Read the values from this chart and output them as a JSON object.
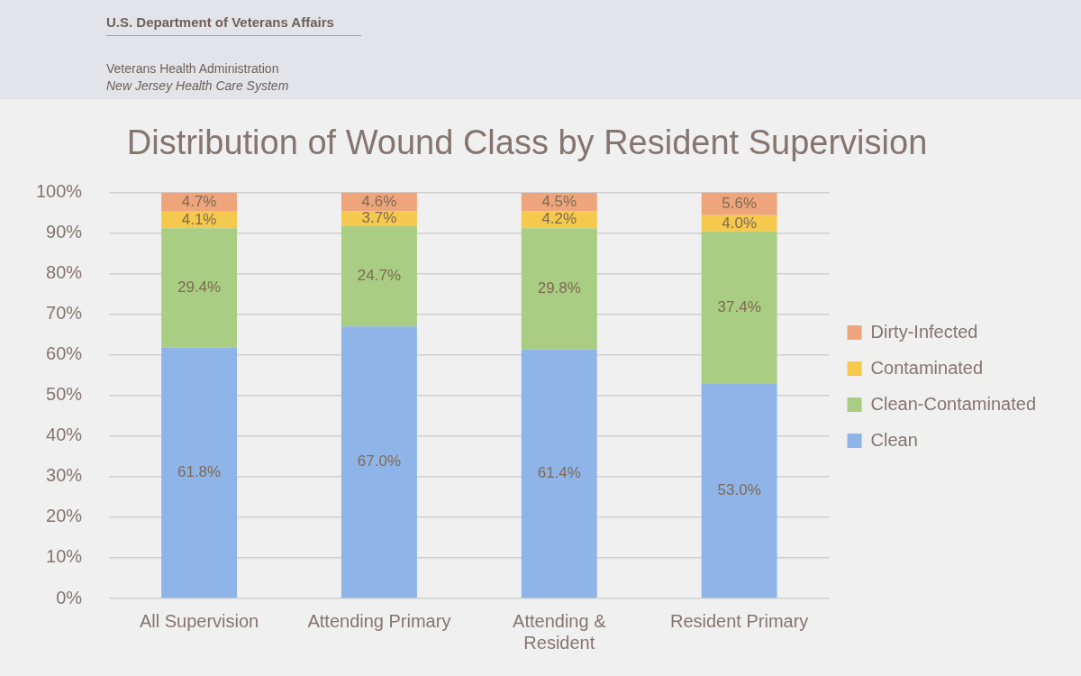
{
  "chart_data": {
    "type": "bar",
    "title": "Distribution of Wound Class by Resident Supervision",
    "annotations": [
      "U.S. Department of Veterans Affairs",
      "Veterans Health Administration",
      "New Jersey Health Care System"
    ],
    "categories": [
      "All Supervision",
      "Attending Primary",
      "Attending & Resident",
      "Resident Primary"
    ],
    "series": [
      {
        "name": "Clean",
        "color": "#8fb4e8",
        "values": [
          61.8,
          67.0,
          61.4,
          53.0
        ],
        "value_labels": [
          "61.8%",
          "67.0%",
          "61.4%",
          "53.0%"
        ]
      },
      {
        "name": "Clean-Contaminated",
        "color": "#a9cd82",
        "values": [
          29.4,
          24.7,
          29.8,
          37.4
        ],
        "value_labels": [
          "29.4%",
          "24.7%",
          "29.8%",
          "37.4%"
        ]
      },
      {
        "name": "Contaminated",
        "color": "#f5c94e",
        "values": [
          4.1,
          3.7,
          4.2,
          4.0
        ],
        "value_labels": [
          "4.1%",
          "3.7%",
          "4.2%",
          "4.0%"
        ]
      },
      {
        "name": "Dirty-Infected",
        "color": "#efa57c",
        "values": [
          4.7,
          4.6,
          4.5,
          5.6
        ],
        "value_labels": [
          "4.7%",
          "4.6%",
          "4.5%",
          "5.6%"
        ]
      }
    ],
    "stacked": true,
    "ylim": [
      0,
      100
    ],
    "yticks": [
      {
        "value": 0,
        "label": "0%"
      },
      {
        "value": 10,
        "label": "10%"
      },
      {
        "value": 20,
        "label": "20%"
      },
      {
        "value": 30,
        "label": "30%"
      },
      {
        "value": 40,
        "label": "40%"
      },
      {
        "value": 50,
        "label": "50%"
      },
      {
        "value": 60,
        "label": "60%"
      },
      {
        "value": 70,
        "label": "70%"
      },
      {
        "value": 80,
        "label": "80%"
      },
      {
        "value": 90,
        "label": "90%"
      },
      {
        "value": 100,
        "label": "100%"
      }
    ],
    "grid": "y",
    "legend": "right"
  }
}
